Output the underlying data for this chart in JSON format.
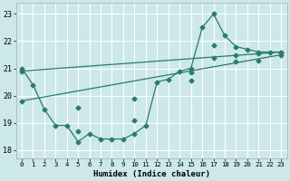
{
  "xlabel": "Humidex (Indice chaleur)",
  "background_color": "#cce8e8",
  "grid_color": "#ffffff",
  "line_color": "#2a7a6f",
  "xlim": [
    -0.5,
    23.5
  ],
  "ylim": [
    17.7,
    23.4
  ],
  "yticks": [
    18,
    19,
    20,
    21,
    22,
    23
  ],
  "xticks": [
    0,
    1,
    2,
    3,
    4,
    5,
    6,
    7,
    8,
    9,
    10,
    11,
    12,
    13,
    14,
    15,
    16,
    17,
    18,
    19,
    20,
    21,
    22,
    23
  ],
  "series1_x": [
    0,
    1,
    2,
    3,
    4,
    5,
    6,
    7,
    8,
    9,
    10,
    11,
    12,
    13,
    14,
    15,
    16,
    17,
    18,
    19,
    20,
    21,
    22,
    23
  ],
  "series1_y": [
    21.0,
    20.4,
    19.5,
    18.9,
    18.9,
    18.3,
    18.6,
    18.4,
    18.4,
    18.4,
    18.6,
    18.9,
    20.5,
    20.6,
    20.9,
    21.0,
    22.5,
    23.0,
    22.2,
    21.8,
    21.7,
    21.6,
    21.6,
    21.6
  ],
  "series2_x": [
    0,
    23
  ],
  "series2_y": [
    20.9,
    21.6
  ],
  "series3_x": [
    0,
    23
  ],
  "series3_y": [
    19.8,
    21.5
  ],
  "marker_x": [
    0,
    5,
    10,
    15,
    17,
    19,
    21,
    23
  ],
  "marker2_y": [
    20.9,
    19.55,
    19.9,
    20.85,
    21.85,
    21.5,
    21.55,
    21.6
  ],
  "marker3_y": [
    19.8,
    18.7,
    19.1,
    20.55,
    21.4,
    21.25,
    21.3,
    21.5
  ]
}
